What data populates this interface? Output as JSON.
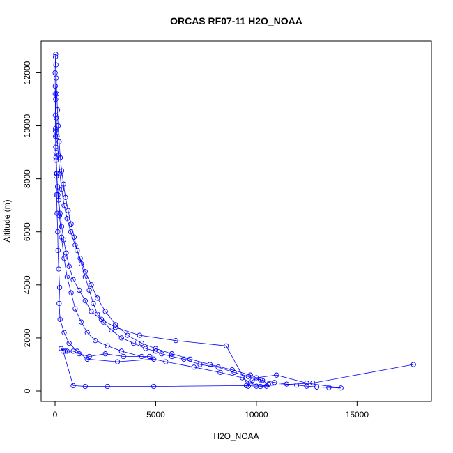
{
  "chart_data": {
    "type": "line",
    "title": "ORCAS RF07-11 H2O_NOAA",
    "xlabel": "H2O_NOAA",
    "ylabel": "Altitude (m)",
    "xlim": [
      0,
      18000
    ],
    "ylim": [
      0,
      12800
    ],
    "x_ticks": [
      0,
      5000,
      10000,
      15000
    ],
    "y_ticks": [
      0,
      2000,
      4000,
      6000,
      8000,
      10000,
      12000
    ],
    "x_tick_labels": [
      "0",
      "5000",
      "10000",
      "15000"
    ],
    "y_tick_labels": [
      "0",
      "2000",
      "4000",
      "6000",
      "8000",
      "10000",
      "12000"
    ],
    "grid": false,
    "legend": "none",
    "marker": "open-circle",
    "series_color": "#0000ff",
    "series": [
      {
        "x": [
          17800,
          12800,
          10000,
          9500,
          4900,
          2600,
          1500,
          900,
          400,
          300,
          500,
          600,
          900,
          1200,
          1700,
          2500,
          3400,
          4700,
          4900,
          3100,
          1600,
          1100,
          700,
          450,
          250,
          200,
          230,
          180,
          150,
          130,
          100,
          80,
          60,
          40,
          20,
          15,
          10,
          5,
          20,
          30,
          40,
          60,
          80,
          120,
          150,
          200,
          260,
          330,
          420,
          520,
          650,
          800,
          950,
          1100,
          1300,
          1500,
          1700,
          1900,
          2100,
          2400,
          2800,
          3300,
          3900,
          4500,
          5000,
          5300,
          5800,
          6400,
          7200,
          8100,
          8900,
          9600,
          10200,
          10900,
          11500,
          12000,
          12500,
          13000,
          13600,
          14200,
          12500,
          11000,
          10000,
          9800,
          9600,
          8500,
          6000,
          4200,
          3000,
          2300,
          1800,
          1500,
          1200,
          900,
          700,
          550,
          430,
          330,
          250,
          180,
          120,
          80,
          50,
          30,
          20,
          10,
          30,
          60,
          100,
          160,
          240,
          330,
          450,
          600,
          780,
          1000,
          1250,
          1500,
          1800,
          2100,
          2500,
          3000,
          3600,
          4300,
          5000,
          5800,
          6700,
          7700,
          8800,
          9700,
          10300,
          10600,
          10500,
          10200,
          9700,
          9300,
          8200,
          6900,
          5500,
          4300,
          3300,
          2600,
          2000,
          1600,
          1300,
          1000,
          800,
          600,
          450,
          320,
          220,
          140,
          90,
          50,
          20
        ],
        "y": [
          1000,
          300,
          180,
          200,
          170,
          170,
          170,
          200,
          1500,
          1600,
          1500,
          1500,
          1500,
          1400,
          1300,
          1400,
          1300,
          1300,
          1200,
          1100,
          1200,
          1500,
          1800,
          2200,
          2700,
          3300,
          3900,
          4600,
          5300,
          6000,
          6700,
          7400,
          8100,
          8800,
          9600,
          10400,
          11200,
          12000,
          12600,
          12700,
          12300,
          11800,
          11200,
          10600,
          10000,
          9400,
          8800,
          8300,
          7800,
          7300,
          6800,
          6300,
          5800,
          5300,
          4800,
          4300,
          3800,
          3300,
          2900,
          2600,
          2300,
          2000,
          1800,
          1600,
          1500,
          1400,
          1300,
          1200,
          1000,
          900,
          700,
          550,
          420,
          320,
          260,
          220,
          180,
          150,
          130,
          110,
          300,
          600,
          500,
          400,
          180,
          1700,
          1900,
          2100,
          2400,
          2700,
          3000,
          3400,
          3800,
          4200,
          4700,
          5200,
          5700,
          6200,
          6700,
          7200,
          7700,
          8200,
          8700,
          9200,
          9800,
          11500,
          11000,
          10300,
          9600,
          8900,
          8200,
          7600,
          7000,
          6500,
          6000,
          5500,
          5000,
          4500,
          4000,
          3500,
          3000,
          2500,
          2100,
          1800,
          1600,
          1400,
          1200,
          1000,
          800,
          600,
          400,
          250,
          180,
          170,
          300,
          500,
          700,
          900,
          1100,
          1300,
          1500,
          1700,
          1900,
          2200,
          2600,
          3100,
          3700,
          4300,
          5000,
          5800,
          6600,
          7400,
          8200,
          9000,
          9900
        ]
      }
    ]
  }
}
